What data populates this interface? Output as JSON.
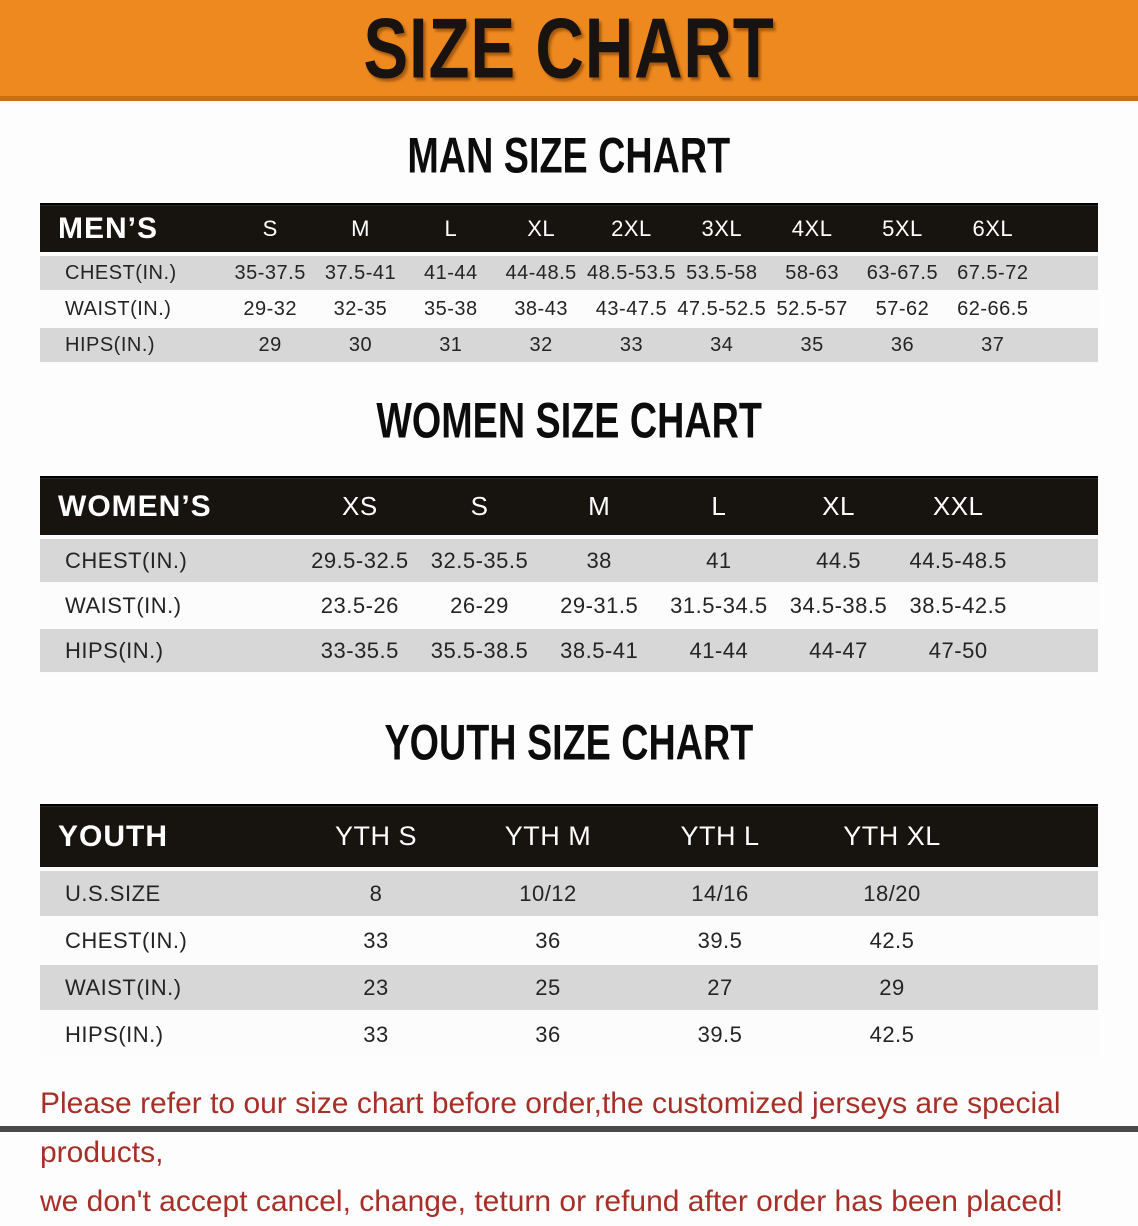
{
  "banner": {
    "title": "SIZE CHART",
    "bg_color": "#ee8920",
    "text_color": "#181310"
  },
  "sections": {
    "men": {
      "heading": "MAN SIZE CHART",
      "table": {
        "corner_label": "MEN’S",
        "columns": [
          "S",
          "M",
          "L",
          "XL",
          "2XL",
          "3XL",
          "4XL",
          "5XL",
          "6XL"
        ],
        "rows": [
          {
            "label": "CHEST(IN.)",
            "values": [
              "35-37.5",
              "37.5-41",
              "41-44",
              "44-48.5",
              "48.5-53.5",
              "53.5-58",
              "58-63",
              "63-67.5",
              "67.5-72"
            ]
          },
          {
            "label": "WAIST(IN.)",
            "values": [
              "29-32",
              "32-35",
              "35-38",
              "38-43",
              "43-47.5",
              "47.5-52.5",
              "52.5-57",
              "57-62",
              "62-66.5"
            ]
          },
          {
            "label": "HIPS(IN.)",
            "values": [
              "29",
              "30",
              "31",
              "32",
              "33",
              "34",
              "35",
              "36",
              "37"
            ]
          }
        ]
      }
    },
    "women": {
      "heading": "WOMEN SIZE CHART",
      "table": {
        "corner_label": "WOMEN’S",
        "columns": [
          "XS",
          "S",
          "M",
          "L",
          "XL",
          "XXL"
        ],
        "rows": [
          {
            "label": "CHEST(IN.)",
            "values": [
              "29.5-32.5",
              "32.5-35.5",
              "38",
              "41",
              "44.5",
              "44.5-48.5"
            ]
          },
          {
            "label": "WAIST(IN.)",
            "values": [
              "23.5-26",
              "26-29",
              "29-31.5",
              "31.5-34.5",
              "34.5-38.5",
              "38.5-42.5"
            ]
          },
          {
            "label": "HIPS(IN.)",
            "values": [
              "33-35.5",
              "35.5-38.5",
              "38.5-41",
              "41-44",
              "44-47",
              "47-50"
            ]
          }
        ]
      }
    },
    "youth": {
      "heading": "YOUTH SIZE CHART",
      "table": {
        "corner_label": "YOUTH",
        "columns": [
          "YTH S",
          "YTH M",
          "YTH L",
          "YTH XL"
        ],
        "rows": [
          {
            "label": "U.S.SIZE",
            "values": [
              "8",
              "10/12",
              "14/16",
              "18/20"
            ]
          },
          {
            "label": "CHEST(IN.)",
            "values": [
              "33",
              "36",
              "39.5",
              "42.5"
            ]
          },
          {
            "label": "WAIST(IN.)",
            "values": [
              "23",
              "25",
              "27",
              "29"
            ]
          },
          {
            "label": "HIPS(IN.)",
            "values": [
              "33",
              "36",
              "39.5",
              "42.5"
            ]
          }
        ]
      }
    }
  },
  "footer": {
    "line1": "Please refer to our size chart before order,the customized jerseys are special products,",
    "line2": "we don't accept cancel, change, teturn or refund after order has been placed!",
    "text_color": "#a62f28"
  },
  "styles": {
    "stripe_row_color": "#d7d7d7",
    "table_header_color": "#17130f"
  }
}
